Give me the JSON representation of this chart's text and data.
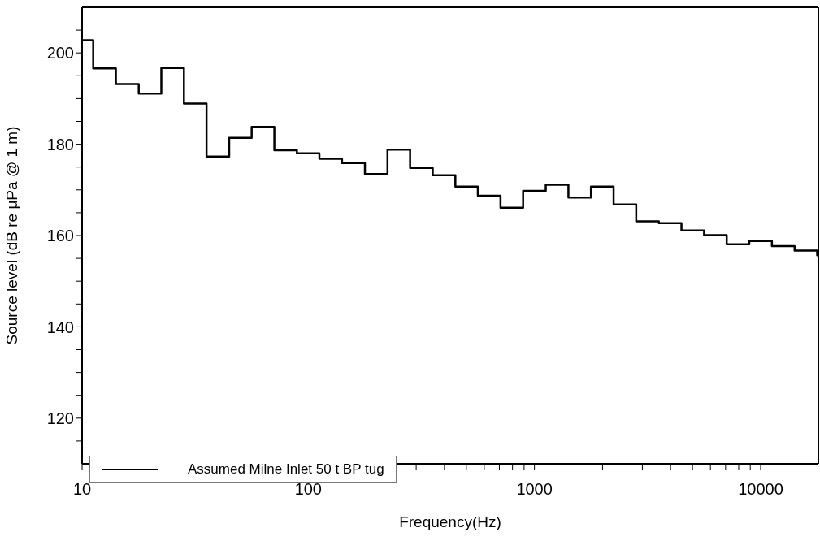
{
  "chart_data": {
    "type": "step",
    "xlabel": "Frequency(Hz)",
    "ylabel": "Source level (dB re μPa @ 1 m)",
    "log": "x",
    "legend": "bottom left",
    "marker": "none",
    "line_style": "solid",
    "x": [
      10,
      11.2,
      14.1,
      17.8,
      22.4,
      28.2,
      35.5,
      44.7,
      56.2,
      70.8,
      89.1,
      112,
      141,
      178,
      224,
      282,
      355,
      447,
      562,
      708,
      891,
      1122,
      1413,
      1778,
      2239,
      2818,
      3548,
      4467,
      5623,
      7079,
      8913,
      11220,
      14130,
      17780,
      18000
    ],
    "series": [
      {
        "name": "Assumed Milne Inlet 50 t BP tug",
        "color": "#000000",
        "values": [
          202.8,
          196.6,
          193.2,
          191.1,
          196.7,
          188.9,
          177.3,
          181.4,
          183.8,
          178.7,
          178.0,
          176.8,
          175.9,
          173.5,
          178.8,
          174.8,
          173.2,
          170.7,
          168.7,
          166.1,
          169.8,
          171.1,
          168.3,
          170.7,
          166.8,
          163.1,
          162.7,
          161.1,
          160.1,
          158.1,
          158.8,
          157.7,
          156.7,
          155.7,
          155.7
        ]
      }
    ],
    "xlim": [
      10,
      18000
    ],
    "xticks": [
      10,
      {
        "value": 20,
        "label": null
      },
      {
        "value": 30,
        "label": null
      },
      {
        "value": 40,
        "label": null
      },
      {
        "value": 50,
        "label": null
      },
      {
        "value": 60,
        "label": null
      },
      {
        "value": 70,
        "label": null
      },
      {
        "value": 80,
        "label": null
      },
      {
        "value": 90,
        "label": null
      },
      100,
      {
        "value": 200,
        "label": null
      },
      {
        "value": 300,
        "label": null
      },
      {
        "value": 400,
        "label": null
      },
      {
        "value": 500,
        "label": null
      },
      {
        "value": 600,
        "label": null
      },
      {
        "value": 700,
        "label": null
      },
      {
        "value": 800,
        "label": null
      },
      {
        "value": 900,
        "label": null
      },
      1000,
      {
        "value": 2000,
        "label": null
      },
      {
        "value": 3000,
        "label": null
      },
      {
        "value": 4000,
        "label": null
      },
      {
        "value": 5000,
        "label": null
      },
      {
        "value": 6000,
        "label": null
      },
      {
        "value": 7000,
        "label": null
      },
      {
        "value": 8000,
        "label": null
      },
      {
        "value": 9000,
        "label": null
      },
      10000
    ],
    "ylim": [
      110,
      210
    ],
    "yticks": [
      {
        "value": 115,
        "label": null
      },
      120,
      {
        "value": 125,
        "label": null
      },
      {
        "value": 130,
        "label": null
      },
      {
        "value": 135,
        "label": null
      },
      140,
      {
        "value": 145,
        "label": null
      },
      {
        "value": 150,
        "label": null
      },
      {
        "value": 155,
        "label": null
      },
      160,
      {
        "value": 165,
        "label": null
      },
      {
        "value": 170,
        "label": null
      },
      {
        "value": 175,
        "label": null
      },
      180,
      {
        "value": 185,
        "label": null
      },
      {
        "value": 190,
        "label": null
      },
      {
        "value": 195,
        "label": null
      },
      200,
      {
        "value": 205,
        "label": null
      }
    ]
  }
}
